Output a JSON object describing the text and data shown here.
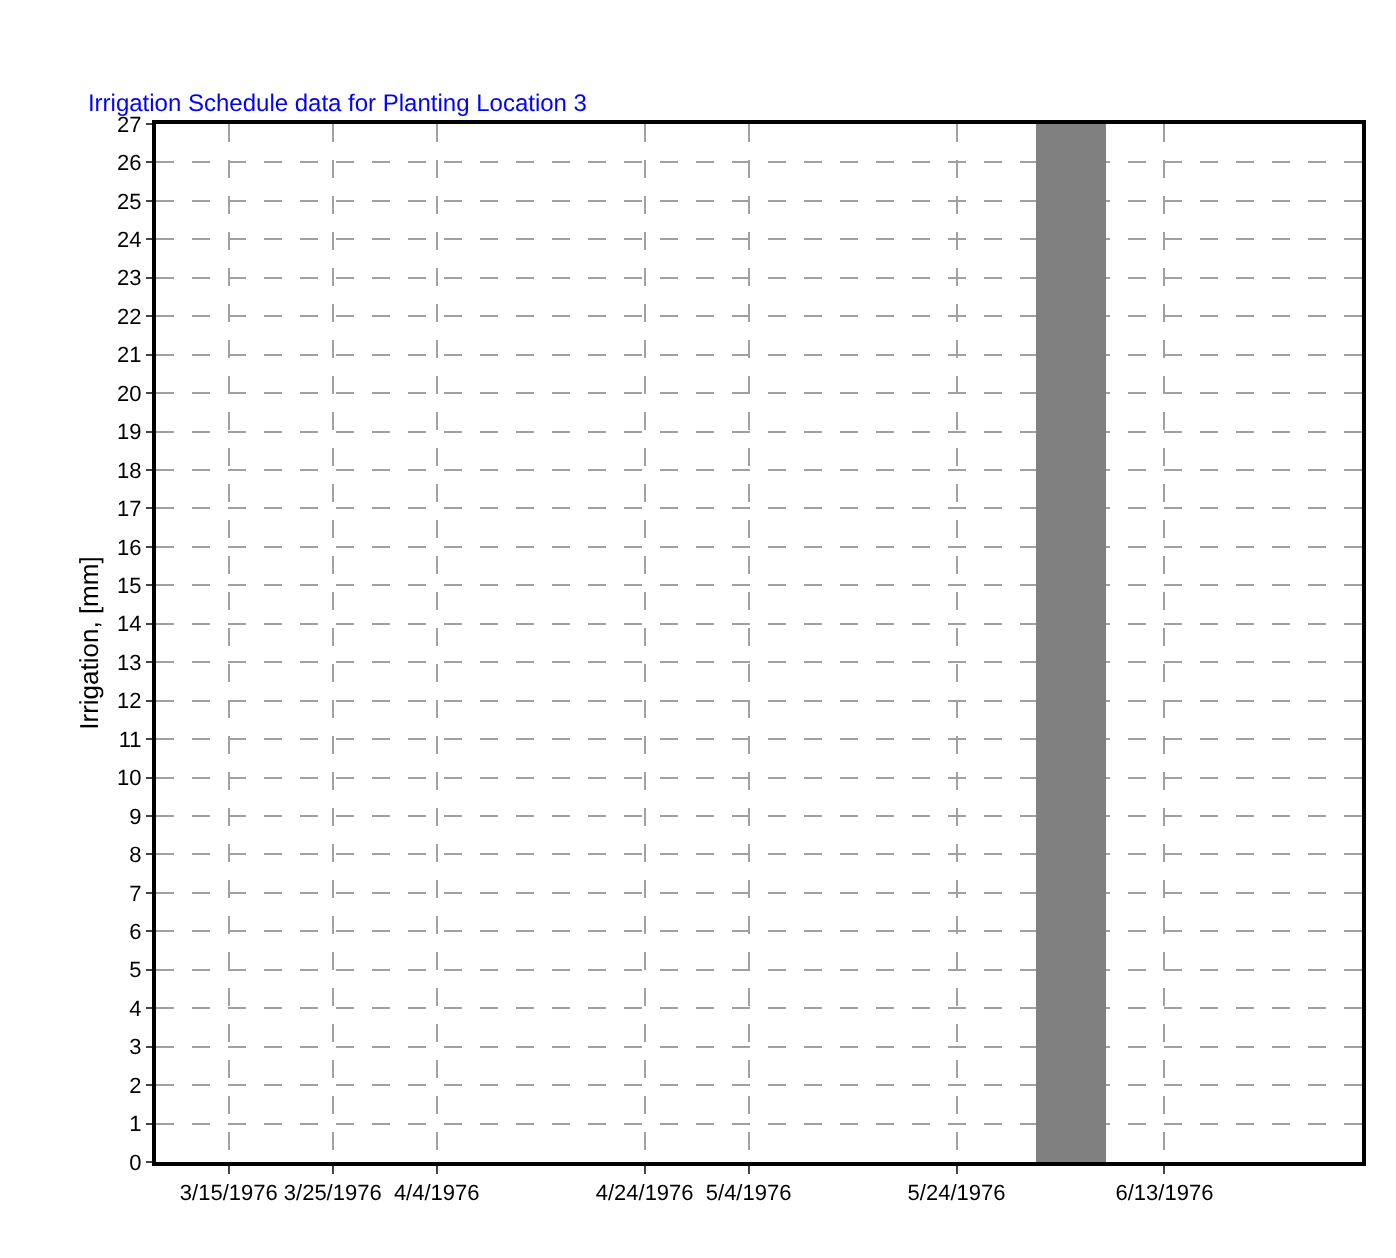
{
  "chart_data": {
    "type": "bar",
    "title": "Irrigation Schedule data for Planting Location 3",
    "ylabel": "Irrigation, [mm]",
    "x": [
      "1976-06-04"
    ],
    "values": [
      27
    ],
    "color": "#808080",
    "xlim": [
      "1976-03-08",
      "1976-07-02"
    ],
    "xticks": [
      {
        "value": "1976-03-15",
        "label": "3/15/1976"
      },
      {
        "value": "1976-03-25",
        "label": "3/25/1976"
      },
      {
        "value": "1976-04-04",
        "label": "4/4/1976"
      },
      {
        "value": "1976-04-24",
        "label": "4/24/1976"
      },
      {
        "value": "1976-05-04",
        "label": "5/4/1976"
      },
      {
        "value": "1976-05-24",
        "label": "5/24/1976"
      },
      {
        "value": "1976-06-13",
        "label": "6/13/1976"
      }
    ],
    "ylim": [
      0,
      27
    ],
    "yticks": [
      0,
      1,
      2,
      3,
      4,
      5,
      6,
      7,
      8,
      9,
      10,
      11,
      12,
      13,
      14,
      15,
      16,
      17,
      18,
      19,
      20,
      21,
      22,
      23,
      24,
      25,
      26,
      27
    ],
    "grid": true,
    "legend": false
  }
}
